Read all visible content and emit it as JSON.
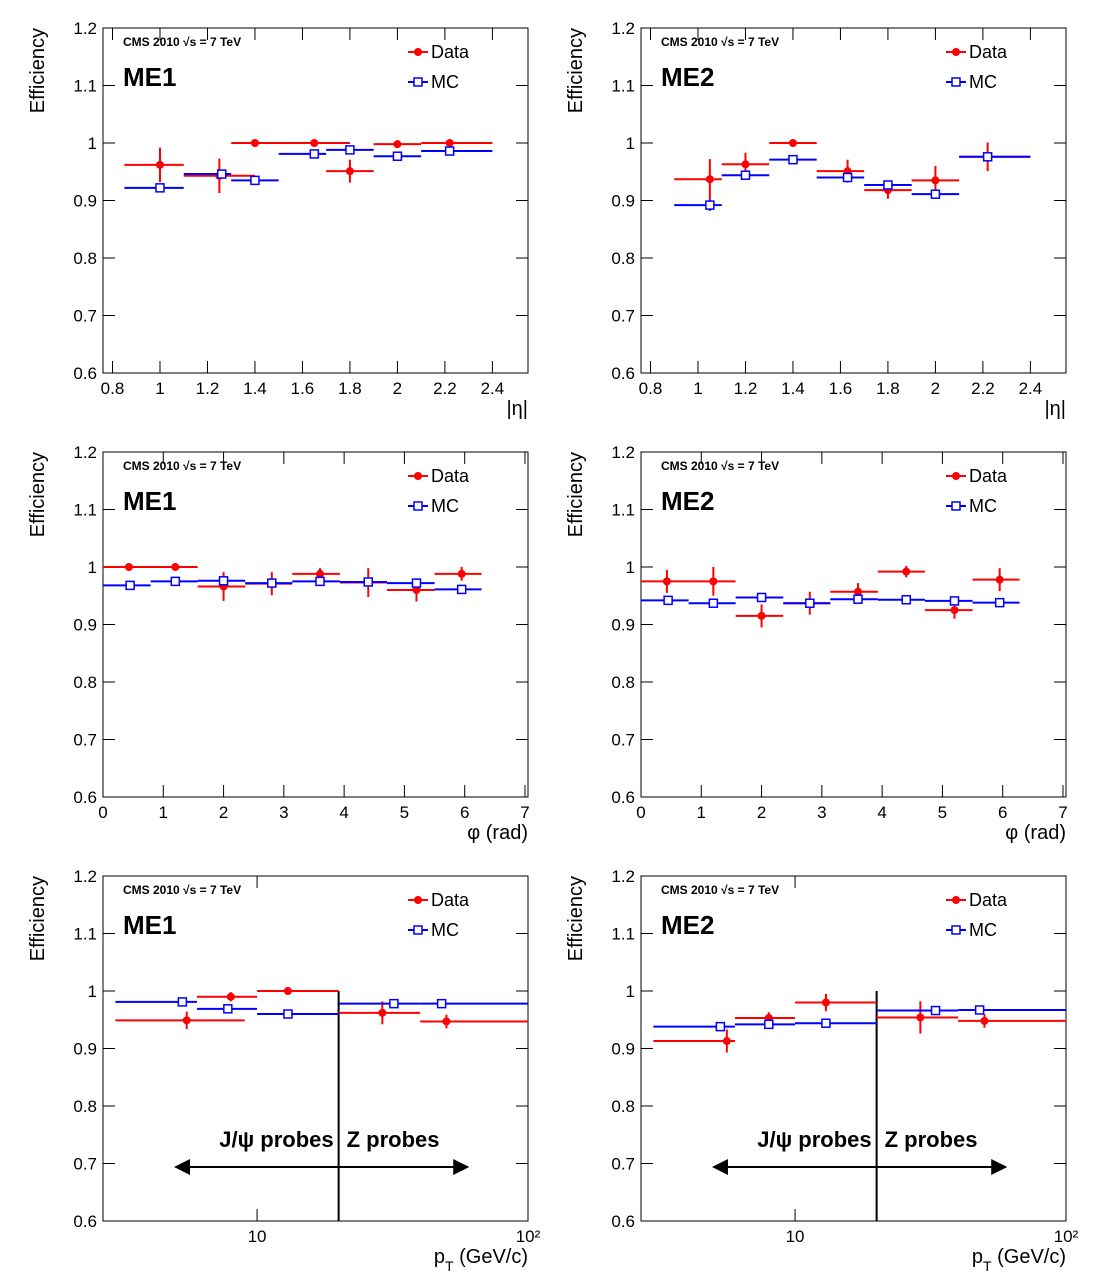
{
  "chart_data": [
    {
      "type": "errorbar",
      "annotation": "CMS 2010 √s = 7 TeV",
      "label": "ME1",
      "y_label": "Efficiency",
      "x_label": [
        "|η|"
      ],
      "xlim": [
        0.76,
        2.55
      ],
      "ylim": [
        0.6,
        1.2
      ],
      "log_x": false,
      "xticks": [
        0.8,
        1,
        1.2,
        1.4,
        1.6,
        1.8,
        2,
        2.2,
        2.4
      ],
      "yticks": [
        0.6,
        0.7,
        0.8,
        0.9,
        1,
        1.1,
        1.2
      ],
      "series": [
        {
          "name": "Data",
          "color": "#ff0000",
          "marker": "circle",
          "x": [
            1.0,
            1.25,
            1.4,
            1.65,
            1.8,
            2.0,
            2.22
          ],
          "x_low": [
            0.85,
            1.1,
            1.3,
            1.55,
            1.7,
            1.9,
            2.1
          ],
          "x_high": [
            1.1,
            1.4,
            1.55,
            1.8,
            1.9,
            2.1,
            2.4
          ],
          "values": [
            0.962,
            0.943,
            1.0,
            1.0,
            0.951,
            0.998,
            1.0
          ],
          "errors": [
            0.03,
            0.03,
            0.005,
            0.005,
            0.02,
            0.005,
            0.004
          ]
        },
        {
          "name": "MC",
          "color": "#0000ff",
          "marker": "open-square",
          "x": [
            1.0,
            1.26,
            1.4,
            1.65,
            1.8,
            2.0,
            2.22
          ],
          "x_low": [
            0.85,
            1.1,
            1.3,
            1.5,
            1.7,
            1.9,
            2.1
          ],
          "x_high": [
            1.1,
            1.3,
            1.5,
            1.7,
            1.9,
            2.1,
            2.4
          ],
          "values": [
            0.922,
            0.946,
            0.935,
            0.981,
            0.988,
            0.977,
            0.986
          ],
          "errors": [
            0.006,
            0.004,
            0.003,
            0.003,
            0.002,
            0.003,
            0.002
          ]
        }
      ]
    },
    {
      "type": "errorbar",
      "annotation": "CMS 2010 √s = 7 TeV",
      "label": "ME2",
      "y_label": "Efficiency",
      "x_label": [
        "|η|"
      ],
      "xlim": [
        0.76,
        2.55
      ],
      "ylim": [
        0.6,
        1.2
      ],
      "log_x": false,
      "xticks": [
        0.8,
        1,
        1.2,
        1.4,
        1.6,
        1.8,
        2,
        2.2,
        2.4
      ],
      "yticks": [
        0.6,
        0.7,
        0.8,
        0.9,
        1,
        1.1,
        1.2
      ],
      "series": [
        {
          "name": "Data",
          "color": "#ff0000",
          "marker": "circle",
          "x": [
            1.05,
            1.2,
            1.4,
            1.63,
            1.8,
            2.0,
            2.22
          ],
          "x_low": [
            0.9,
            1.1,
            1.3,
            1.5,
            1.7,
            1.9,
            2.1
          ],
          "x_high": [
            1.1,
            1.3,
            1.5,
            1.7,
            1.9,
            2.1,
            2.4
          ],
          "values": [
            0.937,
            0.963,
            1.0,
            0.951,
            0.918,
            0.935,
            0.976
          ],
          "errors": [
            0.035,
            0.02,
            0.004,
            0.02,
            0.015,
            0.025,
            0.025
          ]
        },
        {
          "name": "MC",
          "color": "#0000ff",
          "marker": "open-square",
          "x": [
            1.05,
            1.2,
            1.4,
            1.63,
            1.8,
            2.0,
            2.22
          ],
          "x_low": [
            0.9,
            1.1,
            1.3,
            1.5,
            1.7,
            1.9,
            2.1
          ],
          "x_high": [
            1.1,
            1.3,
            1.5,
            1.7,
            1.9,
            2.1,
            2.4
          ],
          "values": [
            0.892,
            0.944,
            0.971,
            0.94,
            0.927,
            0.911,
            0.976
          ],
          "errors": [
            0.01,
            0.004,
            0.003,
            0.005,
            0.004,
            0.004,
            0.004
          ]
        }
      ]
    },
    {
      "type": "errorbar",
      "annotation": "CMS 2010 √s = 7 TeV",
      "label": "ME1",
      "y_label": "Efficiency",
      "x_label": [
        "φ (rad)"
      ],
      "xlim": [
        0,
        7.05
      ],
      "ylim": [
        0.6,
        1.2
      ],
      "log_x": false,
      "xticks": [
        0,
        1,
        2,
        3,
        4,
        5,
        6,
        7
      ],
      "yticks": [
        0.6,
        0.7,
        0.8,
        0.9,
        1,
        1.1,
        1.2
      ],
      "series": [
        {
          "name": "Data",
          "color": "#ff0000",
          "marker": "circle",
          "x": [
            0.43,
            1.2,
            2.0,
            2.8,
            3.6,
            4.4,
            5.2,
            5.95
          ],
          "x_low": [
            0,
            0.79,
            1.57,
            2.36,
            3.14,
            3.93,
            4.71,
            5.5
          ],
          "x_high": [
            0.79,
            1.57,
            2.36,
            3.14,
            3.93,
            4.71,
            5.5,
            6.28
          ],
          "values": [
            1.0,
            1.0,
            0.966,
            0.971,
            0.988,
            0.973,
            0.96,
            0.988
          ],
          "errors": [
            0.005,
            0.005,
            0.025,
            0.02,
            0.01,
            0.025,
            0.02,
            0.012
          ]
        },
        {
          "name": "MC",
          "color": "#0000ff",
          "marker": "open-square",
          "x": [
            0.45,
            1.2,
            2.0,
            2.8,
            3.6,
            4.4,
            5.2,
            5.95
          ],
          "x_low": [
            0,
            0.79,
            1.57,
            2.36,
            3.14,
            3.93,
            4.71,
            5.5
          ],
          "x_high": [
            0.79,
            1.57,
            2.36,
            3.14,
            3.93,
            4.71,
            5.5,
            6.28
          ],
          "values": [
            0.968,
            0.975,
            0.976,
            0.972,
            0.975,
            0.974,
            0.972,
            0.961
          ],
          "errors": [
            0.003,
            0.003,
            0.003,
            0.003,
            0.003,
            0.003,
            0.003,
            0.003
          ]
        }
      ]
    },
    {
      "type": "errorbar",
      "annotation": "CMS 2010 √s = 7 TeV",
      "label": "ME2",
      "y_label": "Efficiency",
      "x_label": [
        "φ (rad)"
      ],
      "xlim": [
        0,
        7.05
      ],
      "ylim": [
        0.6,
        1.2
      ],
      "log_x": false,
      "xticks": [
        0,
        1,
        2,
        3,
        4,
        5,
        6,
        7
      ],
      "yticks": [
        0.6,
        0.7,
        0.8,
        0.9,
        1,
        1.1,
        1.2
      ],
      "series": [
        {
          "name": "Data",
          "color": "#ff0000",
          "marker": "circle",
          "x": [
            0.43,
            1.2,
            2.0,
            2.8,
            3.6,
            4.4,
            5.2,
            5.95
          ],
          "x_low": [
            0,
            0.79,
            1.57,
            2.36,
            3.14,
            3.93,
            4.71,
            5.5
          ],
          "x_high": [
            0.79,
            1.57,
            2.36,
            3.14,
            3.93,
            4.71,
            5.5,
            6.28
          ],
          "values": [
            0.975,
            0.975,
            0.915,
            0.937,
            0.957,
            0.992,
            0.925,
            0.978
          ],
          "errors": [
            0.02,
            0.025,
            0.02,
            0.02,
            0.015,
            0.01,
            0.015,
            0.02
          ]
        },
        {
          "name": "MC",
          "color": "#0000ff",
          "marker": "open-square",
          "x": [
            0.45,
            1.2,
            2.0,
            2.8,
            3.6,
            4.4,
            5.2,
            5.95
          ],
          "x_low": [
            0,
            0.79,
            1.57,
            2.36,
            3.14,
            3.93,
            4.71,
            5.5
          ],
          "x_high": [
            0.79,
            1.57,
            2.36,
            3.14,
            3.93,
            4.71,
            5.5,
            6.28
          ],
          "values": [
            0.942,
            0.937,
            0.947,
            0.937,
            0.944,
            0.943,
            0.941,
            0.938
          ],
          "errors": [
            0.003,
            0.003,
            0.003,
            0.003,
            0.003,
            0.003,
            0.003,
            0.003
          ]
        }
      ]
    },
    {
      "type": "errorbar",
      "annotation": "CMS 2010 √s = 7 TeV",
      "label": "ME1",
      "y_label": "Efficiency",
      "x_label": [
        "p",
        "T",
        " (GeV/c)"
      ],
      "xlim": [
        2.7,
        100
      ],
      "ylim": [
        0.6,
        1.2
      ],
      "log_x": true,
      "xticks": [
        10,
        {
          "value": 100,
          "label": "10²"
        }
      ],
      "yticks": [
        0.6,
        0.7,
        0.8,
        0.9,
        1,
        1.1,
        1.2
      ],
      "divider_x": 20,
      "regions": [
        "J/ψ probes",
        "Z probes"
      ],
      "series": [
        {
          "name": "Data",
          "color": "#ff0000",
          "marker": "circle",
          "x": [
            5.5,
            8,
            13,
            29,
            50
          ],
          "x_low": [
            3,
            6,
            10,
            20,
            40
          ],
          "x_high": [
            9,
            10,
            20,
            40,
            100
          ],
          "values": [
            0.949,
            0.99,
            1.0,
            0.962,
            0.947
          ],
          "errors": [
            0.015,
            0.008,
            0.006,
            0.02,
            0.012
          ]
        },
        {
          "name": "MC",
          "color": "#0000ff",
          "marker": "open-square",
          "x": [
            5.3,
            7.8,
            13,
            32,
            48
          ],
          "x_low": [
            3,
            6,
            10,
            20,
            40
          ],
          "x_high": [
            6,
            10,
            20,
            40,
            100
          ],
          "values": [
            0.981,
            0.969,
            0.96,
            0.978,
            0.978
          ],
          "errors": [
            0.003,
            0.003,
            0.003,
            0.003,
            0.003
          ]
        }
      ]
    },
    {
      "type": "errorbar",
      "annotation": "CMS 2010 √s = 7 TeV",
      "label": "ME2",
      "y_label": "Efficiency",
      "x_label": [
        "p",
        "T",
        " (GeV/c)"
      ],
      "xlim": [
        2.7,
        100
      ],
      "ylim": [
        0.6,
        1.2
      ],
      "log_x": true,
      "xticks": [
        10,
        {
          "value": 100,
          "label": "10²"
        }
      ],
      "yticks": [
        0.6,
        0.7,
        0.8,
        0.9,
        1,
        1.1,
        1.2
      ],
      "divider_x": 20,
      "regions": [
        "J/ψ probes",
        "Z probes"
      ],
      "series": [
        {
          "name": "Data",
          "color": "#ff0000",
          "marker": "circle",
          "x": [
            5.6,
            8,
            13,
            29,
            50
          ],
          "x_low": [
            3,
            6,
            10,
            20,
            40
          ],
          "x_high": [
            6,
            10,
            20,
            40,
            100
          ],
          "values": [
            0.913,
            0.953,
            0.98,
            0.954,
            0.948
          ],
          "errors": [
            0.02,
            0.01,
            0.015,
            0.028,
            0.012
          ]
        },
        {
          "name": "MC",
          "color": "#0000ff",
          "marker": "open-square",
          "x": [
            5.3,
            8,
            13,
            33,
            48
          ],
          "x_low": [
            3,
            6,
            10,
            20,
            40
          ],
          "x_high": [
            6,
            10,
            20,
            40,
            100
          ],
          "values": [
            0.938,
            0.942,
            0.944,
            0.966,
            0.967
          ],
          "errors": [
            0.003,
            0.003,
            0.003,
            0.003,
            0.003
          ]
        }
      ]
    }
  ]
}
